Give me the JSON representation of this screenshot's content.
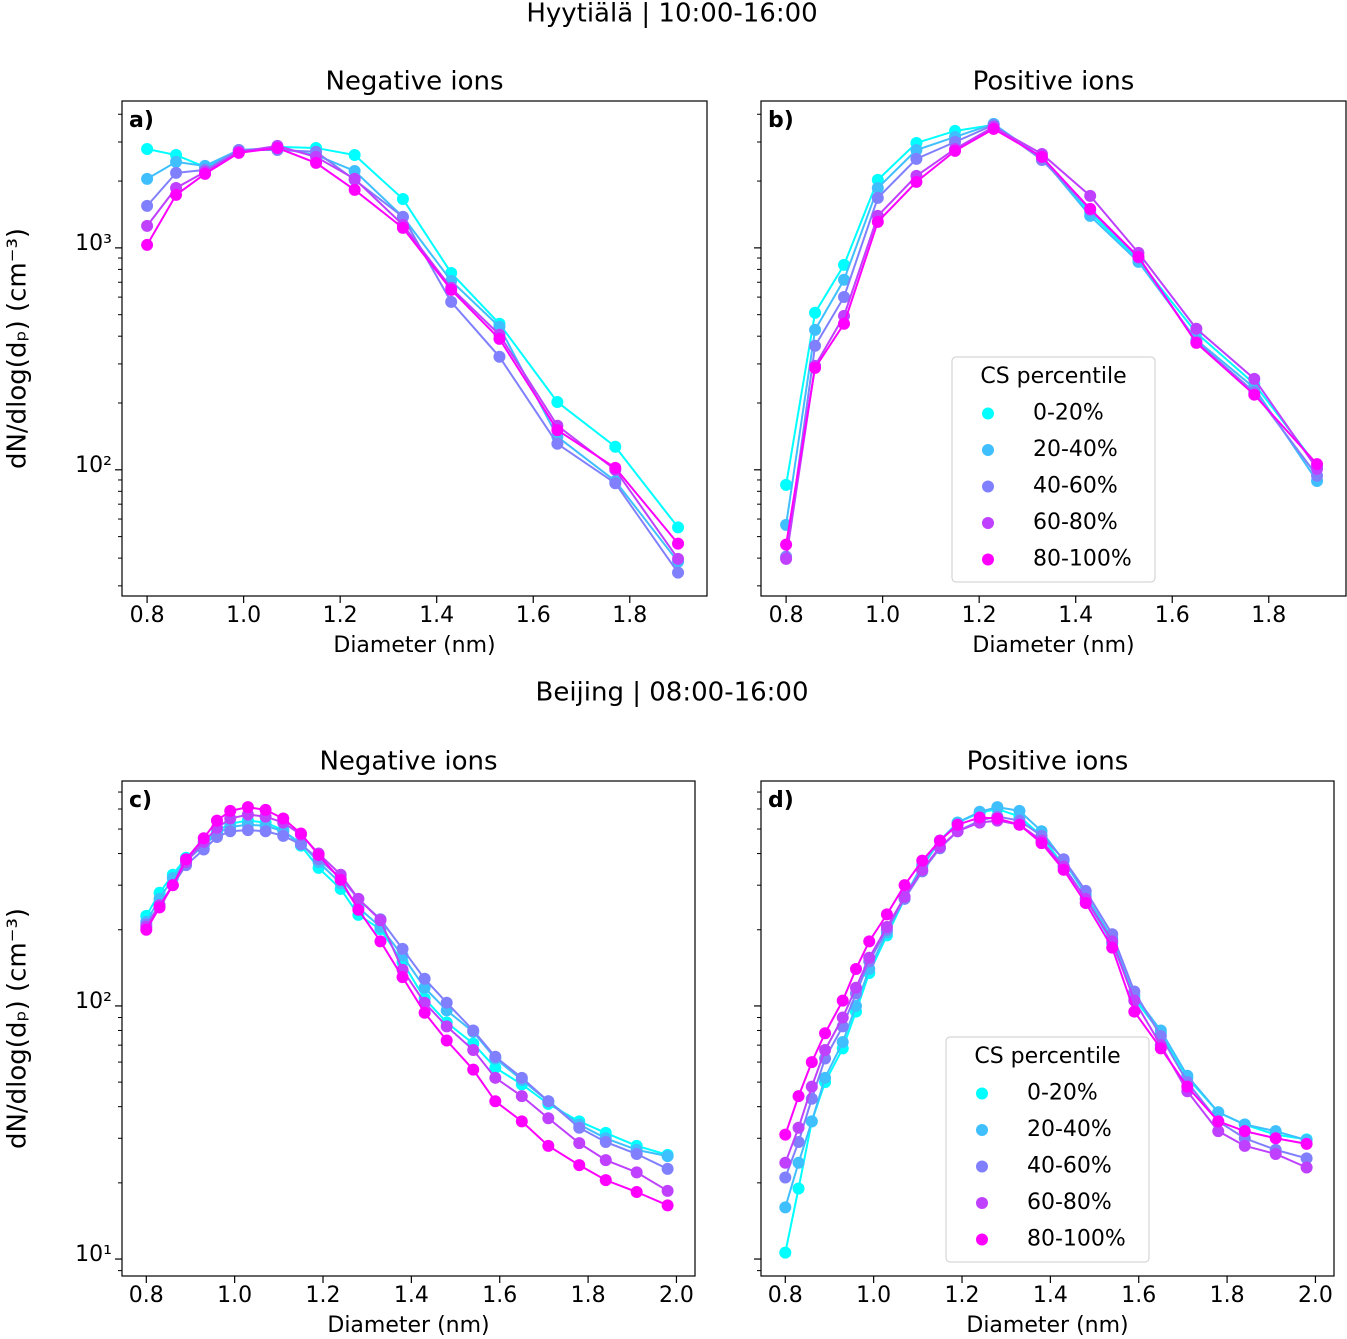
{
  "row_titles": [
    "Hyytiälä | 10:00-16:00",
    "Beijing | 08:00-16:00"
  ],
  "chart_data": [
    {
      "type": "line",
      "panel_label": "a)",
      "title": "Negative ions",
      "xlabel": "Diameter (nm)",
      "ylabel": "dN/dlog(dₚ) (cm⁻³)",
      "yscale": "log",
      "markers": true,
      "show_ytick_labels": true,
      "xlim": [
        0.748,
        1.96
      ],
      "ylim": [
        27,
        4590
      ],
      "xticks": [
        0.8,
        {
          "value": 1,
          "label": "1.0"
        },
        1.2,
        1.4,
        1.6,
        1.8
      ],
      "yticks": [
        {
          "value": 100,
          "label": "10²"
        },
        {
          "value": 1000,
          "label": "10³"
        }
      ],
      "yminorticks": [
        30,
        40,
        50,
        60,
        70,
        80,
        90,
        200,
        300,
        400,
        500,
        600,
        700,
        800,
        900,
        2000,
        3000,
        4000
      ],
      "x": [
        0.8,
        0.86,
        0.92,
        0.99,
        1.07,
        1.15,
        1.23,
        1.33,
        1.43,
        1.53,
        1.65,
        1.77,
        1.9
      ],
      "series": [
        {
          "name": "0-20%",
          "color": "#00ffff",
          "values": [
            2790,
            2620,
            2315,
            2710,
            2850,
            2820,
            2620,
            1660,
            771,
            455,
            202,
            127,
            55
          ]
        },
        {
          "name": "20-40%",
          "color": "#40bfff",
          "values": [
            2045,
            2440,
            2340,
            2760,
            2820,
            2620,
            2220,
            1380,
            710,
            441,
            141,
            89,
            38.5
          ]
        },
        {
          "name": "40-60%",
          "color": "#8080ff",
          "values": [
            1546,
            2177,
            2245,
            2760,
            2760,
            2710,
            2025,
            1380,
            571,
            323,
            131,
            87,
            34.4
          ]
        },
        {
          "name": "60-80%",
          "color": "#bf40ff",
          "values": [
            1256,
            1862,
            2200,
            2710,
            2880,
            2570,
            2045,
            1270,
            660,
            406,
            158,
            100,
            39.7
          ]
        },
        {
          "name": "80-100%",
          "color": "#ff00ff",
          "values": [
            1031,
            1733,
            2155,
            2680,
            2820,
            2415,
            1825,
            1230,
            647,
            389,
            151,
            102,
            46.5
          ]
        }
      ]
    },
    {
      "type": "line",
      "panel_label": "b)",
      "title": "Positive ions",
      "xlabel": "Diameter (nm)",
      "yscale": "log",
      "markers": true,
      "show_ytick_labels": false,
      "legend": "lower center",
      "legend_title": "CS percentile",
      "xlim": [
        0.748,
        1.96
      ],
      "ylim": [
        27,
        4590
      ],
      "xticks": [
        0.8,
        {
          "value": 1,
          "label": "1.0"
        },
        1.2,
        1.4,
        1.6,
        1.8
      ],
      "yticks": [
        100,
        1000
      ],
      "yminorticks": [
        30,
        40,
        50,
        60,
        70,
        80,
        90,
        200,
        300,
        400,
        500,
        600,
        700,
        800,
        900,
        2000,
        3000,
        4000
      ],
      "x": [
        0.8,
        0.86,
        0.92,
        0.99,
        1.07,
        1.15,
        1.23,
        1.33,
        1.43,
        1.53,
        1.65,
        1.77,
        1.9
      ],
      "series": [
        {
          "name": "0-20%",
          "color": "#00ffff",
          "values": [
            85.5,
            510,
            838,
            2025,
            2970,
            3365,
            3580,
            2545,
            1438,
            883,
            414,
            244,
            104
          ]
        },
        {
          "name": "20-40%",
          "color": "#40bfff",
          "values": [
            56.5,
            427,
            718,
            1862,
            2760,
            3160,
            3620,
            2545,
            1393,
            865,
            385,
            234,
            89
          ]
        },
        {
          "name": "40-60%",
          "color": "#8080ff",
          "values": [
            40.6,
            362,
            601,
            1680,
            2518,
            3000,
            3580,
            2490,
            1483,
            902,
            378,
            224,
            94
          ]
        },
        {
          "name": "60-80%",
          "color": "#bf40ff",
          "values": [
            39.7,
            294,
            494,
            1394,
            2110,
            2790,
            3510,
            2650,
            1715,
            950,
            432,
            257,
            101
          ]
        },
        {
          "name": "80-100%",
          "color": "#ff00ff",
          "values": [
            46,
            288,
            455,
            1310,
            1983,
            2735,
            3435,
            2570,
            1498,
            911,
            373,
            218,
            106
          ]
        }
      ]
    },
    {
      "type": "line",
      "panel_label": "c)",
      "title": "Negative ions",
      "xlabel": "Diameter (nm)",
      "ylabel": "dN/dlog(dₚ) (cm⁻³)",
      "yscale": "log",
      "markers": true,
      "show_ytick_labels": true,
      "xlim": [
        0.745,
        2.042
      ],
      "ylim": [
        8.57,
        774
      ],
      "xticks": [
        0.8,
        {
          "value": 1,
          "label": "1.0"
        },
        1.2,
        1.4,
        1.6,
        1.8,
        {
          "value": 2,
          "label": "2.0"
        }
      ],
      "yticks": [
        {
          "value": 10,
          "label": "10¹"
        },
        {
          "value": 100,
          "label": "10²"
        }
      ],
      "yminorticks": [
        9,
        20,
        30,
        40,
        50,
        60,
        70,
        80,
        90,
        200,
        300,
        400,
        500,
        600,
        700
      ],
      "x": [
        0.8,
        0.83,
        0.86,
        0.89,
        0.93,
        0.96,
        0.99,
        1.03,
        1.07,
        1.11,
        1.15,
        1.19,
        1.24,
        1.28,
        1.33,
        1.38,
        1.43,
        1.48,
        1.54,
        1.59,
        1.65,
        1.71,
        1.78,
        1.84,
        1.91,
        1.98
      ],
      "series": [
        {
          "name": "0-20%",
          "color": "#00ffff",
          "values": [
            227,
            280,
            330,
            385,
            440,
            490,
            525,
            540,
            530,
            495,
            430,
            351,
            290,
            229,
            201,
            149,
            107,
            86,
            71,
            57,
            49,
            41,
            35,
            31.5,
            28,
            25.8
          ]
        },
        {
          "name": "20-40%",
          "color": "#40bfff",
          "values": [
            215,
            265,
            320,
            375,
            430,
            480,
            510,
            520,
            515,
            490,
            440,
            370,
            305,
            245,
            205,
            158,
            118,
            96,
            79,
            62,
            51,
            42,
            34,
            30,
            27,
            25.5
          ]
        },
        {
          "name": "40-60%",
          "color": "#8080ff",
          "values": [
            210,
            250,
            300,
            360,
            415,
            465,
            490,
            495,
            490,
            470,
            435,
            380,
            320,
            265,
            220,
            168,
            128,
            103,
            80,
            63,
            52,
            42,
            33,
            29,
            26,
            22.7
          ]
        },
        {
          "name": "60-80%",
          "color": "#bf40ff",
          "values": [
            205,
            250,
            300,
            370,
            445,
            505,
            550,
            570,
            560,
            530,
            475,
            400,
            330,
            265,
            218,
            139,
            103,
            83,
            67,
            52,
            44,
            36,
            28.7,
            24.6,
            22,
            18.6
          ]
        },
        {
          "name": "80-100%",
          "color": "#ff00ff",
          "values": [
            200,
            245,
            300,
            380,
            460,
            540,
            590,
            610,
            595,
            550,
            480,
            395,
            315,
            240,
            180,
            130,
            94,
            73,
            56,
            42,
            35,
            28,
            23.5,
            20.5,
            18.4,
            16.3
          ]
        }
      ]
    },
    {
      "type": "line",
      "panel_label": "d)",
      "title": "Positive ions",
      "xlabel": "Diameter (nm)",
      "yscale": "log",
      "markers": true,
      "show_ytick_labels": false,
      "legend": "lower center",
      "legend_title": "CS percentile",
      "xlim": [
        0.745,
        2.042
      ],
      "ylim": [
        8.57,
        774
      ],
      "xticks": [
        0.8,
        {
          "value": 1,
          "label": "1.0"
        },
        1.2,
        1.4,
        1.6,
        1.8,
        {
          "value": 2,
          "label": "2.0"
        }
      ],
      "yticks": [
        10,
        100
      ],
      "yminorticks": [
        9,
        20,
        30,
        40,
        50,
        60,
        70,
        80,
        90,
        200,
        300,
        400,
        500,
        600,
        700
      ],
      "x": [
        0.8,
        0.83,
        0.86,
        0.89,
        0.93,
        0.96,
        0.99,
        1.03,
        1.07,
        1.11,
        1.15,
        1.19,
        1.24,
        1.28,
        1.33,
        1.38,
        1.43,
        1.48,
        1.54,
        1.59,
        1.65,
        1.71,
        1.78,
        1.84,
        1.91,
        1.98
      ],
      "series": [
        {
          "name": "0-20%",
          "color": "#00ffff",
          "values": [
            10.6,
            19,
            35,
            50,
            68,
            95,
            135,
            190,
            265,
            355,
            450,
            530,
            580,
            600,
            560,
            470,
            357,
            265,
            177,
            107,
            78,
            52,
            38,
            34,
            31,
            29.7
          ]
        },
        {
          "name": "20-40%",
          "color": "#40bfff",
          "values": [
            16,
            24,
            35,
            52,
            72,
            100,
            140,
            195,
            270,
            360,
            450,
            530,
            585,
            610,
            590,
            490,
            375,
            275,
            185,
            110,
            80,
            53,
            38,
            34,
            32,
            29.5
          ]
        },
        {
          "name": "40-60%",
          "color": "#8080ff",
          "values": [
            21,
            29,
            43,
            62,
            83,
            112,
            150,
            200,
            265,
            340,
            420,
            490,
            540,
            560,
            540,
            470,
            380,
            285,
            192,
            114,
            76,
            50,
            35,
            30,
            27,
            25
          ]
        },
        {
          "name": "60-80%",
          "color": "#bf40ff",
          "values": [
            24,
            33,
            48,
            67,
            90,
            118,
            155,
            205,
            270,
            345,
            425,
            490,
            530,
            540,
            520,
            450,
            355,
            265,
            180,
            105,
            70,
            46,
            32,
            28,
            26,
            23
          ]
        },
        {
          "name": "80-100%",
          "color": "#ff00ff",
          "values": [
            31,
            44,
            60,
            78,
            105,
            140,
            180,
            230,
            300,
            375,
            450,
            520,
            555,
            550,
            520,
            440,
            345,
            255,
            170,
            95,
            68,
            48,
            35,
            32,
            30,
            28.5
          ]
        }
      ]
    }
  ]
}
